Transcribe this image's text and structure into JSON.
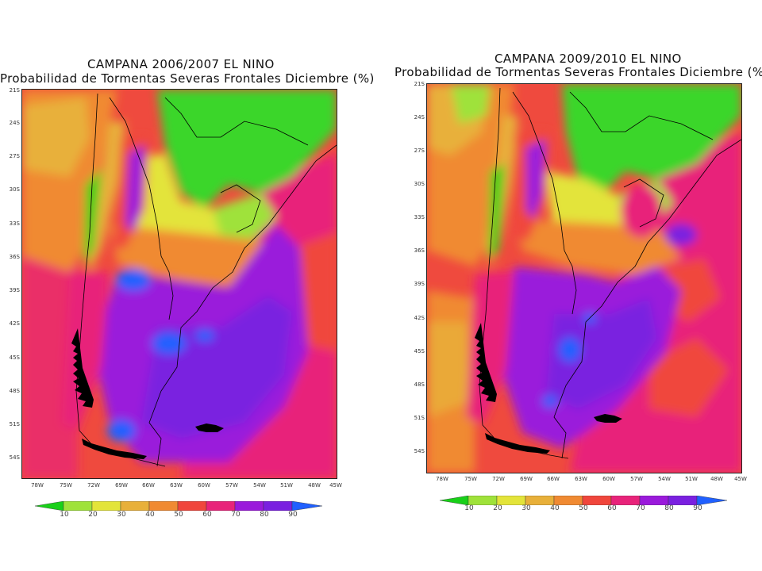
{
  "colors": {
    "levels": [
      "#19d019",
      "#9fe23a",
      "#e3e43a",
      "#e8b03a",
      "#f08a32",
      "#f0463c",
      "#e8237a",
      "#9a1adb",
      "#7a20e0",
      "#2060ff"
    ],
    "land_green": "#3ad62a",
    "ocean": "#ee3f4a",
    "coast": "#000000"
  },
  "maps": [
    {
      "title_line1": "CAMPANA 2006/2007 EL NINO",
      "title_line2": "Probabilidad de Tormentas Severas Frontales Diciembre (%)"
    },
    {
      "title_line1": "CAMPANA 2009/2010 EL NINO",
      "title_line2": "Probabilidad de Tormentas Severas Frontales Diciembre (%)"
    }
  ],
  "lat_labels": [
    "21S",
    "24S",
    "27S",
    "30S",
    "33S",
    "36S",
    "39S",
    "42S",
    "45S",
    "48S",
    "51S",
    "54S"
  ],
  "lon_labels": [
    "78W",
    "75W",
    "72W",
    "69W",
    "66W",
    "63W",
    "60W",
    "57W",
    "54W",
    "51W",
    "48W",
    "45W"
  ],
  "colorbar_labels": [
    "10",
    "20",
    "30",
    "40",
    "50",
    "60",
    "70",
    "80",
    "90"
  ]
}
